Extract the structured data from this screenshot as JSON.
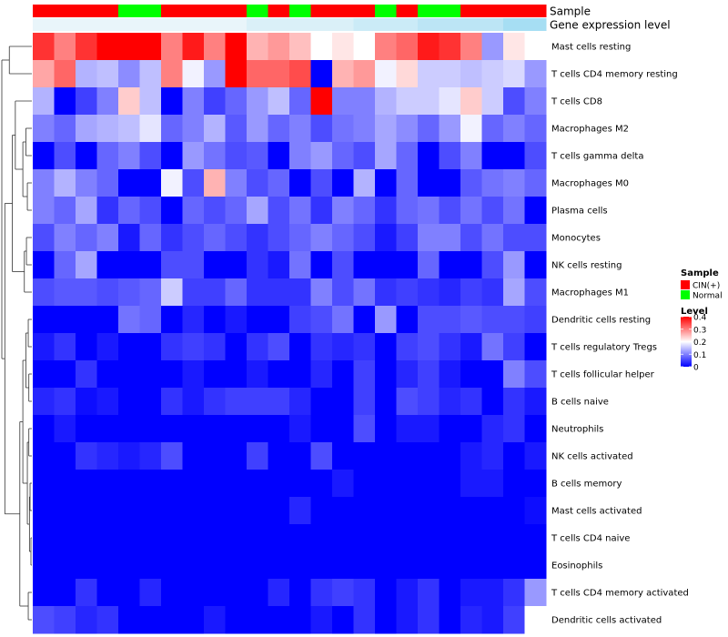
{
  "chart_data": {
    "type": "heatmap",
    "title": "",
    "annotation_rows": [
      {
        "name": "Sample",
        "label": "Sample"
      },
      {
        "name": "Gene expression level",
        "label": "Gene expression level"
      }
    ],
    "sample_group": [
      "CIN(+)",
      "CIN(+)",
      "CIN(+)",
      "CIN(+)",
      "Normal",
      "Normal",
      "CIN(+)",
      "CIN(+)",
      "CIN(+)",
      "CIN(+)",
      "Normal",
      "CIN(+)",
      "Normal",
      "CIN(+)",
      "CIN(+)",
      "CIN(+)",
      "Normal",
      "CIN(+)",
      "Normal",
      "Normal",
      "CIN(+)",
      "CIN(+)",
      "CIN(+)",
      "CIN(+)"
    ],
    "sample_colors": {
      "CIN(+)": "#ff0000",
      "Normal": "#00ff00"
    },
    "expression_level": [
      0.05,
      0.05,
      0.05,
      0.05,
      0.05,
      0.05,
      0.05,
      0.05,
      0.05,
      0.05,
      0.15,
      0.15,
      0.15,
      0.15,
      0.15,
      0.25,
      0.25,
      0.25,
      0.35,
      0.35,
      0.35,
      0.35,
      0.5,
      0.5
    ],
    "expression_range": [
      0,
      1
    ],
    "expression_colors": [
      "#f0f8fb",
      "#5bc3ea"
    ],
    "rows": [
      "Mast cells resting",
      "T cells CD4 memory resting",
      "T cells CD8",
      "Macrophages M2",
      "T cells gamma delta",
      "Macrophages M0",
      "Plasma cells",
      "Monocytes",
      "NK cells resting",
      "Macrophages M1",
      "Dendritic cells resting",
      "T cells regulatory  Tregs",
      "T cells follicular helper",
      "B cells naive",
      "Neutrophils",
      "NK cells activated",
      "B cells memory",
      "Mast cells activated",
      "T cells CD4 naive",
      "Eosinophils",
      "T cells CD4 memory activated",
      "Dendritic cells activated"
    ],
    "values": [
      [
        0.36,
        0.3,
        0.36,
        0.4,
        0.4,
        0.4,
        0.3,
        0.38,
        0.3,
        0.4,
        0.26,
        0.28,
        0.25,
        0.2,
        0.22,
        0.2,
        0.3,
        0.32,
        0.38,
        0.36,
        0.3,
        0.12,
        0.22,
        0.2
      ],
      [
        0.27,
        0.32,
        0.14,
        0.15,
        0.11,
        0.15,
        0.3,
        0.19,
        0.12,
        0.4,
        0.32,
        0.32,
        0.34,
        0.0,
        0.26,
        0.28,
        0.19,
        0.23,
        0.16,
        0.16,
        0.15,
        0.16,
        0.17,
        0.12
      ],
      [
        0.14,
        0.0,
        0.05,
        0.1,
        0.24,
        0.15,
        0.0,
        0.1,
        0.05,
        0.08,
        0.12,
        0.15,
        0.08,
        0.4,
        0.1,
        0.1,
        0.14,
        0.16,
        0.16,
        0.18,
        0.24,
        0.16,
        0.06,
        0.1
      ],
      [
        0.1,
        0.08,
        0.13,
        0.14,
        0.15,
        0.18,
        0.08,
        0.1,
        0.14,
        0.07,
        0.12,
        0.08,
        0.1,
        0.06,
        0.09,
        0.1,
        0.13,
        0.11,
        0.08,
        0.12,
        0.19,
        0.08,
        0.1,
        0.08
      ],
      [
        0.0,
        0.06,
        0.0,
        0.08,
        0.1,
        0.06,
        0.0,
        0.12,
        0.09,
        0.06,
        0.07,
        0.0,
        0.1,
        0.12,
        0.08,
        0.06,
        0.13,
        0.08,
        0.0,
        0.06,
        0.1,
        0.0,
        0.0,
        0.06
      ],
      [
        0.1,
        0.14,
        0.1,
        0.08,
        0.0,
        0.0,
        0.19,
        0.06,
        0.26,
        0.1,
        0.06,
        0.08,
        0.0,
        0.06,
        0.0,
        0.14,
        0.0,
        0.08,
        0.0,
        0.0,
        0.07,
        0.09,
        0.1,
        0.08
      ],
      [
        0.1,
        0.08,
        0.13,
        0.04,
        0.08,
        0.06,
        0.0,
        0.08,
        0.06,
        0.08,
        0.13,
        0.06,
        0.09,
        0.04,
        0.1,
        0.08,
        0.04,
        0.08,
        0.09,
        0.06,
        0.09,
        0.06,
        0.09,
        0.0
      ],
      [
        0.06,
        0.1,
        0.08,
        0.1,
        0.02,
        0.08,
        0.04,
        0.06,
        0.08,
        0.06,
        0.04,
        0.06,
        0.08,
        0.1,
        0.08,
        0.06,
        0.02,
        0.05,
        0.1,
        0.1,
        0.06,
        0.09,
        0.06,
        0.06
      ],
      [
        0.0,
        0.08,
        0.13,
        0.0,
        0.0,
        0.0,
        0.06,
        0.06,
        0.0,
        0.0,
        0.04,
        0.02,
        0.09,
        0.0,
        0.06,
        0.0,
        0.0,
        0.0,
        0.08,
        0.0,
        0.0,
        0.06,
        0.12,
        0.0
      ],
      [
        0.06,
        0.07,
        0.07,
        0.06,
        0.07,
        0.08,
        0.16,
        0.05,
        0.05,
        0.08,
        0.04,
        0.04,
        0.04,
        0.1,
        0.06,
        0.09,
        0.04,
        0.05,
        0.04,
        0.03,
        0.05,
        0.04,
        0.13,
        0.06
      ],
      [
        0.0,
        0.0,
        0.0,
        0.0,
        0.09,
        0.08,
        0.0,
        0.03,
        0.0,
        0.02,
        0.0,
        0.0,
        0.05,
        0.06,
        0.09,
        0.0,
        0.12,
        0.0,
        0.06,
        0.06,
        0.07,
        0.06,
        0.06,
        0.05
      ],
      [
        0.02,
        0.04,
        0.0,
        0.02,
        0.0,
        0.0,
        0.04,
        0.05,
        0.04,
        0.0,
        0.04,
        0.06,
        0.0,
        0.04,
        0.03,
        0.04,
        0.0,
        0.05,
        0.06,
        0.04,
        0.02,
        0.09,
        0.05,
        0.0
      ],
      [
        0.0,
        0.0,
        0.04,
        0.0,
        0.0,
        0.0,
        0.0,
        0.02,
        0.0,
        0.0,
        0.02,
        0.0,
        0.0,
        0.03,
        0.0,
        0.05,
        0.0,
        0.03,
        0.05,
        0.02,
        0.0,
        0.0,
        0.1,
        0.06
      ],
      [
        0.03,
        0.04,
        0.01,
        0.02,
        0.0,
        0.0,
        0.04,
        0.02,
        0.04,
        0.05,
        0.05,
        0.05,
        0.03,
        0.0,
        0.0,
        0.05,
        0.0,
        0.06,
        0.05,
        0.03,
        0.04,
        0.0,
        0.04,
        0.02
      ],
      [
        0.0,
        0.02,
        0.0,
        0.0,
        0.0,
        0.0,
        0.0,
        0.0,
        0.0,
        0.0,
        0.0,
        0.0,
        0.02,
        0.0,
        0.0,
        0.06,
        0.0,
        0.02,
        0.02,
        0.0,
        0.0,
        0.03,
        0.04,
        0.0
      ],
      [
        0.0,
        0.0,
        0.04,
        0.03,
        0.02,
        0.03,
        0.06,
        0.0,
        0.0,
        0.0,
        0.05,
        0.0,
        0.0,
        0.06,
        0.0,
        0.0,
        0.0,
        0.0,
        0.0,
        0.0,
        0.02,
        0.03,
        0.0,
        0.02
      ],
      [
        0.0,
        0.0,
        0.0,
        0.0,
        0.0,
        0.0,
        0.0,
        0.0,
        0.0,
        0.0,
        0.0,
        0.0,
        0.0,
        0.0,
        0.02,
        0.0,
        0.0,
        0.0,
        0.0,
        0.0,
        0.02,
        0.02,
        0.0,
        0.0
      ],
      [
        0.0,
        0.0,
        0.0,
        0.0,
        0.0,
        0.0,
        0.0,
        0.0,
        0.0,
        0.0,
        0.0,
        0.0,
        0.03,
        0.0,
        0.0,
        0.0,
        0.0,
        0.0,
        0.0,
        0.0,
        0.0,
        0.0,
        0.0,
        0.01
      ],
      [
        0.0,
        0.0,
        0.0,
        0.0,
        0.0,
        0.0,
        0.0,
        0.0,
        0.0,
        0.0,
        0.0,
        0.0,
        0.0,
        0.0,
        0.0,
        0.0,
        0.0,
        0.0,
        0.0,
        0.0,
        0.0,
        0.0,
        0.0,
        0.0
      ],
      [
        0.0,
        0.0,
        0.0,
        0.0,
        0.0,
        0.0,
        0.0,
        0.0,
        0.0,
        0.0,
        0.0,
        0.0,
        0.0,
        0.0,
        0.0,
        0.0,
        0.0,
        0.0,
        0.0,
        0.0,
        0.0,
        0.0,
        0.0,
        0.0
      ],
      [
        0.0,
        0.0,
        0.04,
        0.0,
        0.0,
        0.03,
        0.0,
        0.0,
        0.0,
        0.0,
        0.0,
        0.03,
        0.0,
        0.04,
        0.05,
        0.04,
        0.0,
        0.02,
        0.04,
        0.0,
        0.02,
        0.02,
        0.04,
        0.12
      ],
      [
        0.06,
        0.05,
        0.03,
        0.04,
        0.0,
        0.0,
        0.0,
        0.0,
        0.02,
        0.0,
        0.0,
        0.0,
        0.0,
        0.02,
        0.0,
        0.04,
        0.0,
        0.02,
        0.04,
        0.0,
        0.03,
        0.02,
        0.05,
        0.2
      ]
    ],
    "color_scale": {
      "min": 0,
      "mid": 0.2,
      "max": 0.4,
      "low": "#0000ff",
      "mid_color": "#ffffff",
      "high": "#ff0000"
    },
    "legend": {
      "sample_title": "Sample",
      "sample_items": [
        {
          "label": "CIN(+)",
          "color": "#ff0000"
        },
        {
          "label": "Normal",
          "color": "#00ff00"
        }
      ],
      "level_title": "Level",
      "level_ticks": [
        {
          "value": 0.4,
          "label": "0.4"
        },
        {
          "value": 0.3,
          "label": "0.3"
        },
        {
          "value": 0.2,
          "label": "0.2"
        },
        {
          "value": 0.1,
          "label": "0.1"
        },
        {
          "value": 0,
          "label": "0"
        }
      ]
    },
    "row_dendrogram": true,
    "column_dendrogram": false
  }
}
